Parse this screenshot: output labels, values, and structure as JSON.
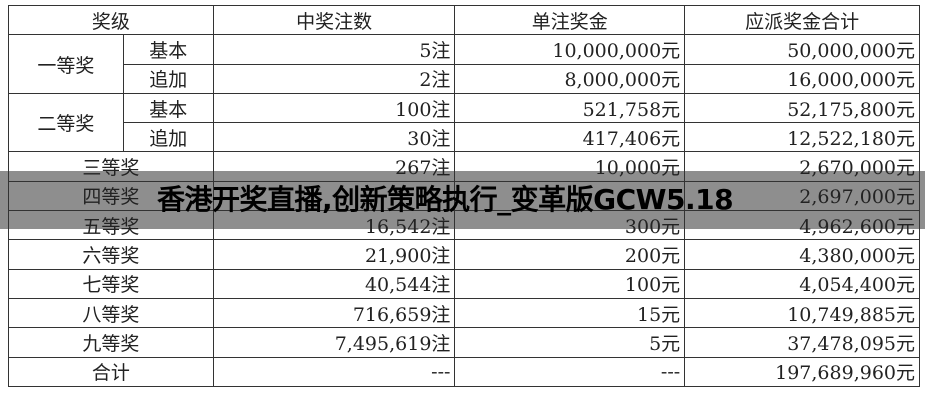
{
  "headers": {
    "level": "奖级",
    "count": "中奖注数",
    "unit": "单注奖金",
    "total": "应派奖金合计"
  },
  "first": {
    "label": "一等奖",
    "basic": {
      "sub": "基本",
      "count": "5注",
      "unit": "10,000,000元",
      "total": "50,000,000元"
    },
    "extra": {
      "sub": "追加",
      "count": "2注",
      "unit": "8,000,000元",
      "total": "16,000,000元"
    }
  },
  "second": {
    "label": "二等奖",
    "basic": {
      "sub": "基本",
      "count": "100注",
      "unit": "521,758元",
      "total": "52,175,800元"
    },
    "extra": {
      "sub": "追加",
      "count": "30注",
      "unit": "417,406元",
      "total": "12,522,180元"
    }
  },
  "rows": [
    {
      "label": "三等奖",
      "count": "267注",
      "unit": "10,000元",
      "total": "2,670,000元"
    },
    {
      "label": "四等奖",
      "count": "",
      "unit": "",
      "total": "2,697,000元"
    },
    {
      "label": "五等奖",
      "count": "16,542注",
      "unit": "300元",
      "total": "4,962,600元"
    },
    {
      "label": "六等奖",
      "count": "21,900注",
      "unit": "200元",
      "total": "4,380,000元"
    },
    {
      "label": "七等奖",
      "count": "40,544注",
      "unit": "100元",
      "total": "4,054,400元"
    },
    {
      "label": "八等奖",
      "count": "716,659注",
      "unit": "15元",
      "total": "10,749,885元"
    },
    {
      "label": "九等奖",
      "count": "7,495,619注",
      "unit": "5元",
      "total": "37,478,095元"
    },
    {
      "label": "合计",
      "count": "---",
      "unit": "---",
      "total": "197,689,960元"
    }
  ],
  "banner": {
    "title": "香港开奖直播,创新策略执行_变革版GCW5.18"
  }
}
